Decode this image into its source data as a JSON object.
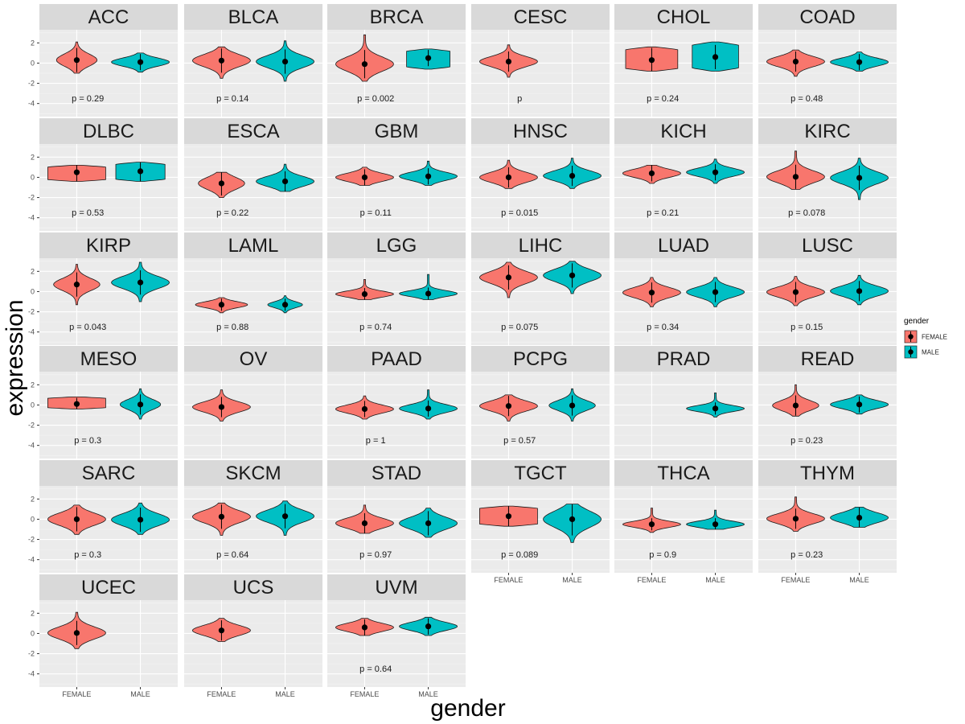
{
  "chart_data": {
    "type": "violin",
    "xlabel": "gender",
    "ylabel": "expression",
    "ylim": [
      -5.3,
      3.3
    ],
    "yticks": [
      2,
      0,
      -2,
      -4
    ],
    "groups": [
      "FEMALE",
      "MALE"
    ],
    "legend": {
      "title": "gender",
      "placement": "right",
      "items": [
        {
          "name": "FEMALE",
          "color": "#F8766D"
        },
        {
          "name": "MALE",
          "color": "#00BFC4"
        }
      ]
    },
    "panels": [
      {
        "label": "ACC",
        "p": "p = 0.29",
        "female": {
          "mean": 0.3,
          "sd": 0.6,
          "min": -1.0,
          "max": 2.1,
          "width": 0.7,
          "shape": "normal"
        },
        "male": {
          "mean": 0.1,
          "sd": 0.4,
          "min": -0.9,
          "max": 1.0,
          "width": 1.0,
          "shape": "normal"
        }
      },
      {
        "label": "BLCA",
        "p": "p = 0.14",
        "female": {
          "mean": 0.25,
          "sd": 0.6,
          "min": -1.5,
          "max": 1.6,
          "width": 1.0,
          "shape": "normal"
        },
        "male": {
          "mean": 0.15,
          "sd": 0.6,
          "min": -1.8,
          "max": 2.2,
          "width": 1.0,
          "shape": "normal"
        }
      },
      {
        "label": "BRCA",
        "p": "p = 0.002",
        "female": {
          "mean": -0.1,
          "sd": 0.7,
          "min": -1.8,
          "max": 2.8,
          "width": 1.0,
          "shape": "normal"
        },
        "male": {
          "mean": 0.5,
          "sd": 0.4,
          "min": -0.6,
          "max": 1.4,
          "width": 0.75,
          "shape": "box"
        }
      },
      {
        "label": "CESC",
        "p": "p",
        "female": {
          "mean": 0.15,
          "sd": 0.5,
          "min": -1.4,
          "max": 1.8,
          "width": 1.0,
          "shape": "normal"
        },
        "male": null
      },
      {
        "label": "CHOL",
        "p": "p = 0.24",
        "female": {
          "mean": 0.3,
          "sd": 0.6,
          "min": -0.8,
          "max": 1.6,
          "width": 0.9,
          "shape": "box"
        },
        "male": {
          "mean": 0.6,
          "sd": 0.6,
          "min": -0.8,
          "max": 2.1,
          "width": 0.8,
          "shape": "box"
        }
      },
      {
        "label": "COAD",
        "p": "p = 0.48",
        "female": {
          "mean": 0.15,
          "sd": 0.5,
          "min": -1.3,
          "max": 1.3,
          "width": 1.0,
          "shape": "normal"
        },
        "male": {
          "mean": 0.1,
          "sd": 0.4,
          "min": -0.8,
          "max": 1.1,
          "width": 1.0,
          "shape": "normal"
        }
      },
      {
        "label": "DLBC",
        "p": "p = 0.53",
        "female": {
          "mean": 0.5,
          "sd": 0.5,
          "min": -0.4,
          "max": 1.2,
          "width": 1.0,
          "shape": "box"
        },
        "male": {
          "mean": 0.6,
          "sd": 0.5,
          "min": -0.4,
          "max": 1.5,
          "width": 0.85,
          "shape": "box"
        }
      },
      {
        "label": "ESCA",
        "p": "p = 0.22",
        "female": {
          "mean": -0.6,
          "sd": 0.6,
          "min": -2.0,
          "max": 0.5,
          "width": 0.8,
          "shape": "normal"
        },
        "male": {
          "mean": -0.4,
          "sd": 0.5,
          "min": -1.4,
          "max": 1.3,
          "width": 1.0,
          "shape": "normal"
        }
      },
      {
        "label": "GBM",
        "p": "p = 0.11",
        "female": {
          "mean": 0.0,
          "sd": 0.4,
          "min": -0.8,
          "max": 1.0,
          "width": 1.0,
          "shape": "normal"
        },
        "male": {
          "mean": 0.1,
          "sd": 0.4,
          "min": -0.8,
          "max": 1.6,
          "width": 1.0,
          "shape": "normal"
        }
      },
      {
        "label": "HNSC",
        "p": "p = 0.015",
        "female": {
          "mean": 0.0,
          "sd": 0.5,
          "min": -1.1,
          "max": 1.7,
          "width": 1.0,
          "shape": "normal"
        },
        "male": {
          "mean": 0.15,
          "sd": 0.5,
          "min": -1.1,
          "max": 1.9,
          "width": 1.0,
          "shape": "normal"
        }
      },
      {
        "label": "KICH",
        "p": "p = 0.21",
        "female": {
          "mean": 0.4,
          "sd": 0.4,
          "min": -0.6,
          "max": 1.2,
          "width": 1.0,
          "shape": "normal"
        },
        "male": {
          "mean": 0.5,
          "sd": 0.4,
          "min": -0.6,
          "max": 1.8,
          "width": 1.0,
          "shape": "normal"
        }
      },
      {
        "label": "KIRC",
        "p": "p = 0.078",
        "female": {
          "mean": 0.05,
          "sd": 0.6,
          "min": -1.2,
          "max": 2.6,
          "width": 1.0,
          "shape": "normal"
        },
        "male": {
          "mean": -0.05,
          "sd": 0.6,
          "min": -2.2,
          "max": 1.9,
          "width": 1.0,
          "shape": "normal"
        }
      },
      {
        "label": "KIRP",
        "p": "p = 0.043",
        "female": {
          "mean": 0.7,
          "sd": 0.6,
          "min": -1.3,
          "max": 2.7,
          "width": 0.8,
          "shape": "normal"
        },
        "male": {
          "mean": 0.9,
          "sd": 0.6,
          "min": -1.0,
          "max": 2.9,
          "width": 1.0,
          "shape": "normal"
        }
      },
      {
        "label": "LAML",
        "p": "p = 0.88",
        "female": {
          "mean": -1.3,
          "sd": 0.3,
          "min": -2.1,
          "max": -0.6,
          "width": 0.9,
          "shape": "normal"
        },
        "male": {
          "mean": -1.3,
          "sd": 0.3,
          "min": -2.1,
          "max": -0.4,
          "width": 0.6,
          "shape": "normal"
        }
      },
      {
        "label": "LGG",
        "p": "p = 0.74",
        "female": {
          "mean": -0.25,
          "sd": 0.3,
          "min": -0.8,
          "max": 1.2,
          "width": 1.0,
          "shape": "normal"
        },
        "male": {
          "mean": -0.2,
          "sd": 0.3,
          "min": -0.8,
          "max": 1.7,
          "width": 1.0,
          "shape": "normal"
        }
      },
      {
        "label": "LIHC",
        "p": "p = 0.075",
        "female": {
          "mean": 1.4,
          "sd": 0.6,
          "min": -0.6,
          "max": 2.9,
          "width": 1.0,
          "shape": "normal"
        },
        "male": {
          "mean": 1.6,
          "sd": 0.6,
          "min": -0.2,
          "max": 3.0,
          "width": 1.0,
          "shape": "normal"
        }
      },
      {
        "label": "LUAD",
        "p": "p = 0.34",
        "female": {
          "mean": -0.1,
          "sd": 0.5,
          "min": -1.5,
          "max": 1.4,
          "width": 1.0,
          "shape": "normal"
        },
        "male": {
          "mean": -0.05,
          "sd": 0.5,
          "min": -1.5,
          "max": 1.4,
          "width": 1.0,
          "shape": "normal"
        }
      },
      {
        "label": "LUSC",
        "p": "p = 0.15",
        "female": {
          "mean": -0.05,
          "sd": 0.5,
          "min": -1.4,
          "max": 1.5,
          "width": 1.0,
          "shape": "normal"
        },
        "male": {
          "mean": 0.05,
          "sd": 0.5,
          "min": -1.3,
          "max": 1.6,
          "width": 1.0,
          "shape": "normal"
        }
      },
      {
        "label": "MESO",
        "p": "p = 0.3",
        "female": {
          "mean": 0.1,
          "sd": 0.3,
          "min": -0.4,
          "max": 0.8,
          "width": 1.0,
          "shape": "box"
        },
        "male": {
          "mean": 0.05,
          "sd": 0.5,
          "min": -1.4,
          "max": 1.6,
          "width": 0.7,
          "shape": "normal"
        }
      },
      {
        "label": "OV",
        "p": "",
        "female": {
          "mean": -0.2,
          "sd": 0.5,
          "min": -1.6,
          "max": 1.5,
          "width": 1.0,
          "shape": "normal"
        },
        "male": null
      },
      {
        "label": "PAAD",
        "p": "p = 1",
        "female": {
          "mean": -0.4,
          "sd": 0.4,
          "min": -1.4,
          "max": 0.9,
          "width": 1.0,
          "shape": "normal"
        },
        "male": {
          "mean": -0.35,
          "sd": 0.4,
          "min": -1.4,
          "max": 1.5,
          "width": 1.0,
          "shape": "normal"
        }
      },
      {
        "label": "PCPG",
        "p": "p = 0.57",
        "female": {
          "mean": -0.1,
          "sd": 0.5,
          "min": -1.6,
          "max": 1.0,
          "width": 1.0,
          "shape": "normal"
        },
        "male": {
          "mean": -0.05,
          "sd": 0.5,
          "min": -1.6,
          "max": 1.6,
          "width": 0.8,
          "shape": "normal"
        }
      },
      {
        "label": "PRAD",
        "p": "",
        "female": null,
        "male": {
          "mean": -0.35,
          "sd": 0.3,
          "min": -1.2,
          "max": 1.2,
          "width": 1.0,
          "shape": "normal"
        }
      },
      {
        "label": "READ",
        "p": "p = 0.23",
        "female": {
          "mean": -0.05,
          "sd": 0.5,
          "min": -1.1,
          "max": 2.0,
          "width": 0.8,
          "shape": "normal"
        },
        "male": {
          "mean": 0.05,
          "sd": 0.4,
          "min": -0.9,
          "max": 1.0,
          "width": 1.0,
          "shape": "normal"
        }
      },
      {
        "label": "SARC",
        "p": "p = 0.3",
        "female": {
          "mean": 0.0,
          "sd": 0.6,
          "min": -1.5,
          "max": 1.4,
          "width": 1.0,
          "shape": "normal"
        },
        "male": {
          "mean": -0.05,
          "sd": 0.6,
          "min": -1.5,
          "max": 1.6,
          "width": 1.0,
          "shape": "normal"
        }
      },
      {
        "label": "SKCM",
        "p": "p = 0.64",
        "female": {
          "mean": 0.25,
          "sd": 0.6,
          "min": -1.6,
          "max": 1.6,
          "width": 1.0,
          "shape": "normal"
        },
        "male": {
          "mean": 0.3,
          "sd": 0.6,
          "min": -1.6,
          "max": 1.8,
          "width": 1.0,
          "shape": "normal"
        }
      },
      {
        "label": "STAD",
        "p": "p = 0.97",
        "female": {
          "mean": -0.4,
          "sd": 0.5,
          "min": -1.4,
          "max": 1.4,
          "width": 1.0,
          "shape": "normal"
        },
        "male": {
          "mean": -0.4,
          "sd": 0.6,
          "min": -1.8,
          "max": 1.1,
          "width": 1.0,
          "shape": "normal"
        }
      },
      {
        "label": "TGCT",
        "p": "p = 0.089",
        "female": {
          "mean": 0.3,
          "sd": 0.7,
          "min": -0.7,
          "max": 1.3,
          "width": 1.0,
          "shape": "box"
        },
        "male": {
          "mean": 0.0,
          "sd": 0.8,
          "min": -2.3,
          "max": 1.5,
          "width": 1.0,
          "shape": "normal"
        }
      },
      {
        "label": "THCA",
        "p": "p = 0.9",
        "female": {
          "mean": -0.5,
          "sd": 0.3,
          "min": -1.3,
          "max": 1.1,
          "width": 1.0,
          "shape": "normal"
        },
        "male": {
          "mean": -0.5,
          "sd": 0.3,
          "min": -1.0,
          "max": 0.9,
          "width": 1.0,
          "shape": "normal"
        }
      },
      {
        "label": "THYM",
        "p": "p = 0.23",
        "female": {
          "mean": 0.05,
          "sd": 0.5,
          "min": -1.2,
          "max": 2.2,
          "width": 1.0,
          "shape": "normal"
        },
        "male": {
          "mean": 0.15,
          "sd": 0.5,
          "min": -0.8,
          "max": 1.2,
          "width": 1.0,
          "shape": "normal"
        }
      },
      {
        "label": "UCEC",
        "p": "",
        "female": {
          "mean": 0.05,
          "sd": 0.6,
          "min": -1.5,
          "max": 2.1,
          "width": 1.0,
          "shape": "normal"
        },
        "male": null
      },
      {
        "label": "UCS",
        "p": "",
        "female": {
          "mean": 0.3,
          "sd": 0.5,
          "min": -0.8,
          "max": 1.5,
          "width": 1.0,
          "shape": "normal"
        },
        "male": null
      },
      {
        "label": "UVM",
        "p": "p = 0.64",
        "female": {
          "mean": 0.6,
          "sd": 0.4,
          "min": -0.2,
          "max": 1.5,
          "width": 1.0,
          "shape": "normal"
        },
        "male": {
          "mean": 0.7,
          "sd": 0.4,
          "min": -0.2,
          "max": 1.6,
          "width": 1.0,
          "shape": "normal"
        }
      }
    ]
  }
}
